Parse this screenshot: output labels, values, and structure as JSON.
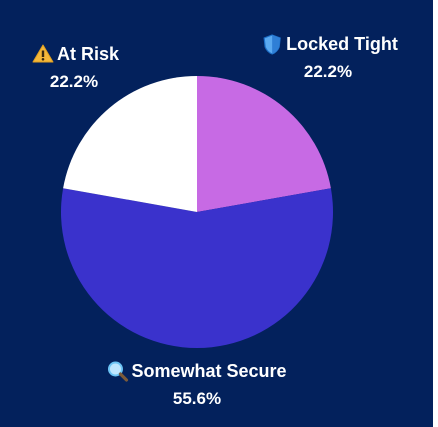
{
  "chart_data": {
    "type": "pie",
    "background": "#03215c",
    "slices": [
      {
        "label": "Locked Tight",
        "icon": "shield-icon",
        "value": 22.2,
        "value_label": "22.2%",
        "color": "#c76ae4"
      },
      {
        "label": "Somewhat Secure",
        "icon": "magnifier-icon",
        "value": 55.6,
        "value_label": "55.6%",
        "color": "#3a32cc"
      },
      {
        "label": "At Risk",
        "icon": "warning-icon",
        "value": 22.2,
        "value_label": "22.2%",
        "color": "#ffffff"
      }
    ]
  }
}
